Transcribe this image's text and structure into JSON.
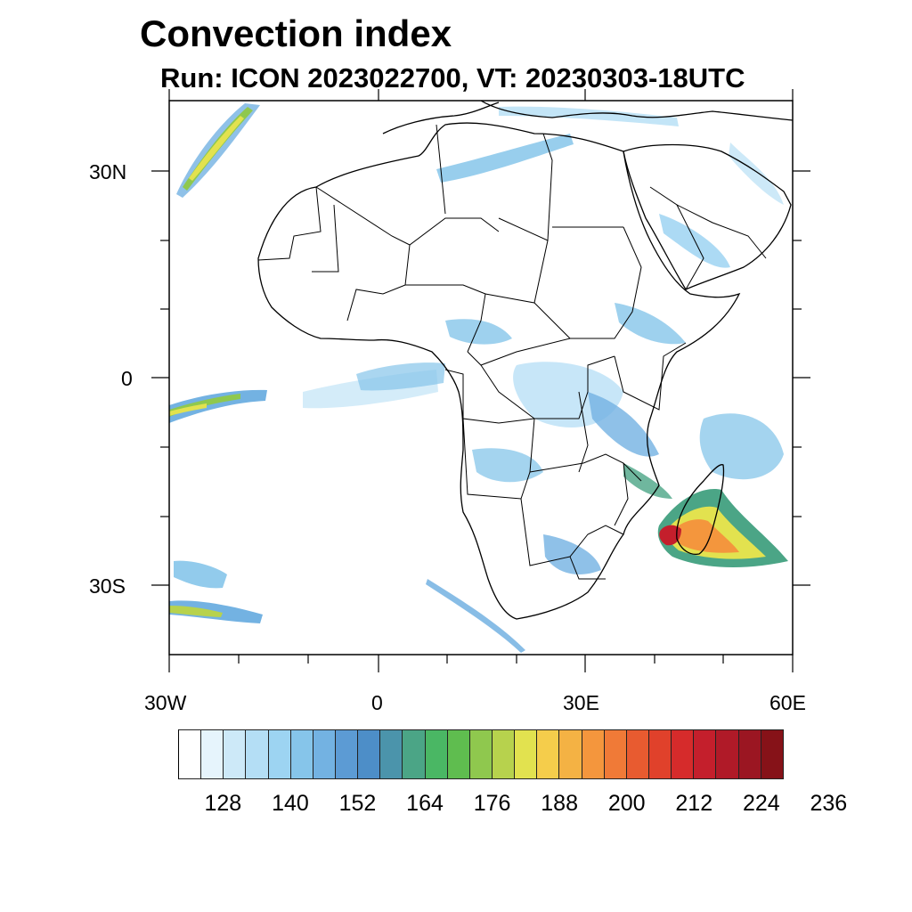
{
  "title": "Convection index",
  "subtitle": "Run: ICON 2023022700,  VT: 20230303-18UTC",
  "map": {
    "lon_range": [
      -30,
      60
    ],
    "lat_range": [
      -40,
      40
    ],
    "lat_ticks": [
      "30N",
      "0",
      "30S"
    ],
    "lon_ticks": [
      "30W",
      "0",
      "30E",
      "60E"
    ]
  },
  "colorbar": {
    "colors": [
      "#ffffff",
      "#e6f4fc",
      "#cde9f8",
      "#b4def5",
      "#9dd4f2",
      "#86c5ea",
      "#73b2e2",
      "#5c9bd4",
      "#4d8ec8",
      "#4b94ab",
      "#4ba586",
      "#4ab764",
      "#5fbd4f",
      "#8fc84e",
      "#b7d24d",
      "#e2e24f",
      "#f5cd4b",
      "#f4b244",
      "#f4963d",
      "#f07a37",
      "#e85b30",
      "#e0412b",
      "#d62b2b",
      "#c41f2c",
      "#b01a28",
      "#9b1622",
      "#861218"
    ],
    "labels": [
      "128",
      "140",
      "152",
      "164",
      "176",
      "188",
      "200",
      "212",
      "224",
      "236"
    ]
  }
}
